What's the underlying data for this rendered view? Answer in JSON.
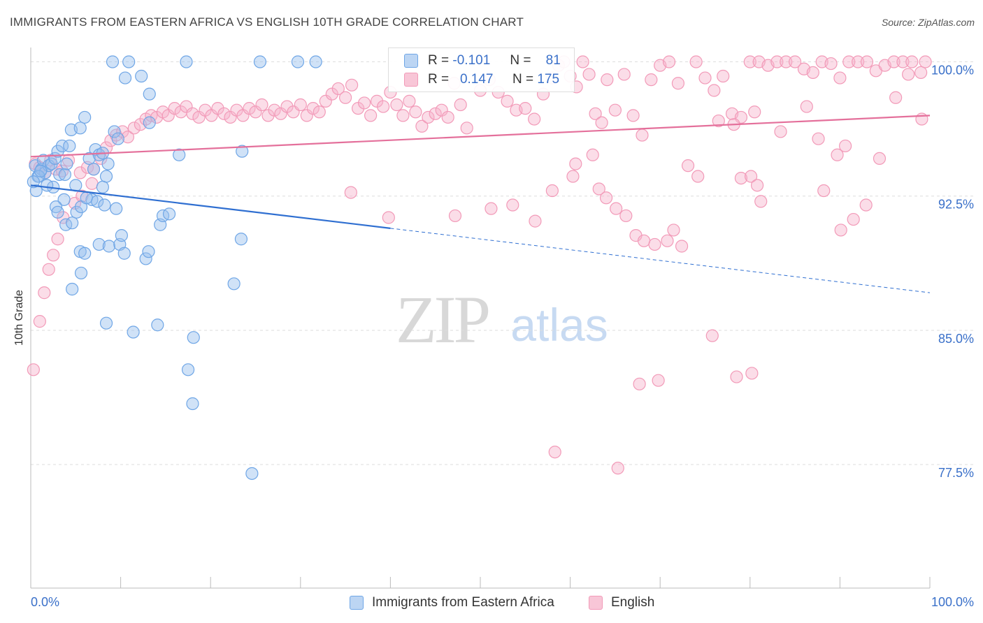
{
  "title": "IMMIGRANTS FROM EASTERN AFRICA VS ENGLISH 10TH GRADE CORRELATION CHART",
  "source": "Source: ZipAtlas.com",
  "watermark": {
    "zip": "ZIP",
    "atlas": "atlas"
  },
  "colors": {
    "blue": "#6fa6e6",
    "blue_line": "#2f6fd1",
    "pink": "#f29ab8",
    "pink_line": "#e4709b",
    "tick_label": "#3a70c9"
  },
  "legend_top": {
    "rows": [
      {
        "r_label": "R =",
        "r_value": "-0.101",
        "n_label": "N =",
        "n_value": "81"
      },
      {
        "r_label": "R =",
        "r_value": "0.147",
        "n_label": "N =",
        "n_value": "175"
      }
    ]
  },
  "chart_data": {
    "type": "scatter",
    "title": "IMMIGRANTS FROM EASTERN AFRICA VS ENGLISH 10TH GRADE CORRELATION CHART",
    "xlabel": "",
    "ylabel": "10th Grade",
    "xlim": [
      0,
      100
    ],
    "ylim": [
      70.6,
      100.8
    ],
    "x_tick_labels": [
      "0.0%",
      "100.0%"
    ],
    "y_ticks": [
      77.5,
      85.0,
      92.5,
      100.0
    ],
    "y_tick_labels": [
      "77.5%",
      "85.0%",
      "92.5%",
      "100.0%"
    ],
    "grid": true,
    "legend_position": "bottom",
    "series": [
      {
        "name": "Immigrants from Eastern Africa",
        "r": -0.101,
        "n": 81,
        "trend": {
          "x0": 0,
          "y0": 93.1,
          "x1": 40,
          "y1": 90.7,
          "dashed_to_x": 100,
          "dashed_to_y": 87.1
        },
        "points": [
          [
            0.5,
            94.2
          ],
          [
            0.8,
            93.6
          ],
          [
            1.2,
            94.0
          ],
          [
            1.4,
            94.5
          ],
          [
            1.6,
            93.8
          ],
          [
            2.0,
            94.2
          ],
          [
            2.5,
            93.0
          ],
          [
            0.6,
            92.8
          ],
          [
            0.9,
            93.6
          ],
          [
            1.1,
            93.9
          ],
          [
            2.3,
            94.3
          ],
          [
            2.7,
            94.6
          ],
          [
            3.0,
            95.0
          ],
          [
            3.2,
            93.7
          ],
          [
            3.5,
            95.3
          ],
          [
            3.8,
            93.7
          ],
          [
            4.0,
            94.3
          ],
          [
            4.3,
            95.3
          ],
          [
            4.5,
            96.2
          ],
          [
            5.5,
            96.3
          ],
          [
            6.0,
            96.9
          ],
          [
            6.5,
            94.6
          ],
          [
            7.0,
            94.0
          ],
          [
            7.2,
            95.1
          ],
          [
            7.6,
            94.8
          ],
          [
            8.0,
            94.9
          ],
          [
            8.4,
            93.6
          ],
          [
            8.6,
            94.3
          ],
          [
            5.0,
            93.1
          ],
          [
            3.7,
            92.3
          ],
          [
            2.8,
            91.9
          ],
          [
            3.0,
            91.6
          ],
          [
            3.9,
            90.9
          ],
          [
            4.6,
            91.0
          ],
          [
            5.1,
            91.6
          ],
          [
            5.6,
            91.9
          ],
          [
            6.8,
            92.3
          ],
          [
            7.4,
            92.2
          ],
          [
            8.2,
            92.0
          ],
          [
            8.0,
            93.0
          ],
          [
            9.5,
            91.8
          ],
          [
            9.3,
            96.1
          ],
          [
            9.7,
            95.7
          ],
          [
            13.2,
            96.6
          ],
          [
            12.3,
            99.2
          ],
          [
            9.1,
            100.0
          ],
          [
            10.5,
            99.1
          ],
          [
            10.9,
            100.0
          ],
          [
            17.3,
            100.0
          ],
          [
            25.5,
            100.0
          ],
          [
            29.7,
            100.0
          ],
          [
            31.7,
            100.0
          ],
          [
            13.2,
            98.2
          ],
          [
            16.5,
            94.8
          ],
          [
            23.5,
            95.0
          ],
          [
            14.4,
            90.9
          ],
          [
            14.7,
            91.4
          ],
          [
            15.4,
            91.5
          ],
          [
            23.4,
            90.1
          ],
          [
            5.5,
            89.4
          ],
          [
            6.0,
            89.3
          ],
          [
            7.6,
            89.8
          ],
          [
            8.7,
            89.7
          ],
          [
            9.9,
            89.8
          ],
          [
            10.4,
            89.3
          ],
          [
            12.8,
            89.0
          ],
          [
            13.1,
            89.4
          ],
          [
            5.6,
            88.2
          ],
          [
            4.6,
            87.3
          ],
          [
            22.6,
            87.6
          ],
          [
            8.4,
            85.4
          ],
          [
            11.4,
            84.9
          ],
          [
            14.1,
            85.3
          ],
          [
            18.1,
            84.6
          ],
          [
            17.5,
            82.8
          ],
          [
            18.0,
            80.9
          ],
          [
            24.6,
            77.0
          ],
          [
            0.3,
            93.3
          ],
          [
            1.8,
            93.1
          ],
          [
            6.2,
            92.4
          ],
          [
            10.1,
            90.3
          ]
        ]
      },
      {
        "name": "English",
        "r": 0.147,
        "n": 175,
        "trend": {
          "x0": 0,
          "y0": 94.7,
          "x1": 100,
          "y1": 97.0
        },
        "points": [
          [
            0.5,
            94.3
          ],
          [
            1.0,
            94.1
          ],
          [
            1.6,
            93.8
          ],
          [
            2.2,
            94.5
          ],
          [
            2.8,
            94.0
          ],
          [
            3.5,
            93.9
          ],
          [
            4.2,
            94.5
          ],
          [
            5.5,
            93.8
          ],
          [
            6.3,
            94.1
          ],
          [
            7.0,
            94.0
          ],
          [
            7.8,
            94.6
          ],
          [
            8.4,
            95.2
          ],
          [
            8.9,
            95.6
          ],
          [
            9.5,
            95.9
          ],
          [
            10.2,
            96.1
          ],
          [
            10.8,
            95.8
          ],
          [
            11.5,
            96.3
          ],
          [
            12.2,
            96.5
          ],
          [
            12.8,
            96.8
          ],
          [
            13.4,
            97.0
          ],
          [
            14.0,
            96.9
          ],
          [
            14.7,
            97.2
          ],
          [
            15.3,
            97.0
          ],
          [
            16.0,
            97.4
          ],
          [
            16.7,
            97.2
          ],
          [
            17.3,
            97.5
          ],
          [
            18.0,
            97.1
          ],
          [
            18.7,
            96.9
          ],
          [
            19.4,
            97.3
          ],
          [
            20.1,
            97.0
          ],
          [
            20.8,
            97.4
          ],
          [
            21.5,
            97.1
          ],
          [
            22.2,
            96.9
          ],
          [
            22.9,
            97.3
          ],
          [
            23.6,
            97.0
          ],
          [
            24.3,
            97.4
          ],
          [
            25.0,
            97.2
          ],
          [
            25.7,
            97.6
          ],
          [
            26.4,
            97.0
          ],
          [
            27.1,
            97.3
          ],
          [
            27.8,
            97.1
          ],
          [
            28.5,
            97.5
          ],
          [
            29.2,
            97.2
          ],
          [
            30.0,
            97.6
          ],
          [
            30.7,
            97.0
          ],
          [
            31.4,
            97.4
          ],
          [
            32.1,
            97.2
          ],
          [
            32.8,
            97.8
          ],
          [
            33.5,
            98.2
          ],
          [
            34.2,
            98.5
          ],
          [
            35.0,
            98.0
          ],
          [
            35.7,
            98.7
          ],
          [
            36.4,
            97.4
          ],
          [
            37.1,
            97.7
          ],
          [
            37.8,
            97.0
          ],
          [
            38.5,
            97.8
          ],
          [
            39.2,
            97.5
          ],
          [
            40.0,
            98.3
          ],
          [
            40.7,
            97.6
          ],
          [
            41.4,
            97.0
          ],
          [
            42.1,
            97.8
          ],
          [
            42.8,
            97.2
          ],
          [
            43.5,
            96.4
          ],
          [
            44.2,
            96.9
          ],
          [
            45.0,
            97.1
          ],
          [
            45.7,
            97.3
          ],
          [
            46.4,
            96.9
          ],
          [
            47.1,
            98.8
          ],
          [
            47.8,
            97.6
          ],
          [
            48.5,
            96.3
          ],
          [
            50.0,
            98.4
          ],
          [
            51.0,
            99.0
          ],
          [
            52.0,
            98.3
          ],
          [
            53.0,
            97.8
          ],
          [
            54.0,
            97.3
          ],
          [
            55.0,
            97.4
          ],
          [
            56.0,
            96.8
          ],
          [
            57.0,
            98.2
          ],
          [
            58.0,
            99.1
          ],
          [
            58.7,
            99.8
          ],
          [
            59.3,
            100.0
          ],
          [
            60.0,
            99.2
          ],
          [
            60.7,
            98.6
          ],
          [
            61.4,
            100.0
          ],
          [
            62.1,
            99.3
          ],
          [
            62.8,
            97.1
          ],
          [
            63.5,
            96.6
          ],
          [
            64.1,
            99.0
          ],
          [
            65.0,
            97.3
          ],
          [
            66.0,
            99.3
          ],
          [
            67.0,
            97.0
          ],
          [
            68.0,
            95.9
          ],
          [
            69.0,
            99.0
          ],
          [
            70.0,
            99.8
          ],
          [
            71.0,
            100.0
          ],
          [
            72.0,
            98.8
          ],
          [
            74.0,
            100.0
          ],
          [
            75.0,
            99.1
          ],
          [
            76.0,
            98.4
          ],
          [
            77.0,
            99.2
          ],
          [
            78.0,
            97.1
          ],
          [
            79.0,
            96.9
          ],
          [
            80.0,
            100.0
          ],
          [
            81.0,
            100.0
          ],
          [
            82.0,
            99.8
          ],
          [
            83.0,
            100.0
          ],
          [
            84.0,
            100.0
          ],
          [
            85.0,
            100.0
          ],
          [
            86.0,
            99.6
          ],
          [
            87.0,
            99.4
          ],
          [
            88.0,
            100.0
          ],
          [
            89.0,
            99.9
          ],
          [
            90.0,
            99.1
          ],
          [
            91.0,
            100.0
          ],
          [
            92.0,
            100.0
          ],
          [
            93.0,
            100.0
          ],
          [
            94.0,
            99.5
          ],
          [
            95.0,
            99.8
          ],
          [
            96.0,
            100.0
          ],
          [
            97.0,
            100.0
          ],
          [
            98.0,
            100.0
          ],
          [
            99.0,
            99.4
          ],
          [
            99.5,
            100.0
          ],
          [
            76.5,
            96.7
          ],
          [
            78.2,
            96.5
          ],
          [
            80.5,
            97.2
          ],
          [
            96.2,
            98.0
          ],
          [
            97.6,
            99.3
          ],
          [
            99.1,
            96.8
          ],
          [
            86.3,
            97.5
          ],
          [
            83.4,
            96.1
          ],
          [
            87.6,
            95.7
          ],
          [
            89.7,
            94.8
          ],
          [
            90.6,
            95.3
          ],
          [
            94.4,
            94.6
          ],
          [
            73.1,
            94.2
          ],
          [
            74.2,
            93.6
          ],
          [
            79.0,
            93.5
          ],
          [
            80.1,
            93.6
          ],
          [
            80.8,
            93.1
          ],
          [
            81.2,
            92.2
          ],
          [
            88.2,
            92.8
          ],
          [
            90.1,
            90.6
          ],
          [
            91.5,
            91.2
          ],
          [
            92.9,
            92.0
          ],
          [
            60.6,
            94.3
          ],
          [
            63.2,
            92.9
          ],
          [
            64.0,
            92.4
          ],
          [
            65.1,
            91.8
          ],
          [
            66.2,
            91.4
          ],
          [
            67.3,
            90.3
          ],
          [
            68.2,
            90.0
          ],
          [
            69.4,
            89.8
          ],
          [
            70.8,
            90.0
          ],
          [
            71.5,
            90.6
          ],
          [
            72.4,
            89.7
          ],
          [
            35.6,
            92.7
          ],
          [
            39.8,
            91.3
          ],
          [
            47.2,
            91.4
          ],
          [
            51.2,
            91.8
          ],
          [
            53.6,
            92.0
          ],
          [
            56.1,
            91.1
          ],
          [
            58.0,
            92.8
          ],
          [
            60.3,
            93.6
          ],
          [
            62.5,
            94.8
          ],
          [
            0.3,
            82.8
          ],
          [
            1.0,
            85.5
          ],
          [
            1.5,
            87.1
          ],
          [
            2.0,
            88.4
          ],
          [
            2.5,
            89.2
          ],
          [
            3.0,
            90.1
          ],
          [
            3.6,
            91.3
          ],
          [
            4.9,
            92.1
          ],
          [
            5.7,
            92.5
          ],
          [
            6.8,
            93.2
          ],
          [
            75.8,
            84.7
          ],
          [
            78.5,
            82.4
          ],
          [
            80.2,
            82.6
          ],
          [
            67.7,
            82.0
          ],
          [
            69.8,
            82.2
          ],
          [
            58.3,
            78.2
          ],
          [
            65.3,
            77.3
          ]
        ]
      }
    ]
  },
  "legend_bottom": [
    {
      "label": "Immigrants from Eastern Africa"
    },
    {
      "label": "English"
    }
  ]
}
